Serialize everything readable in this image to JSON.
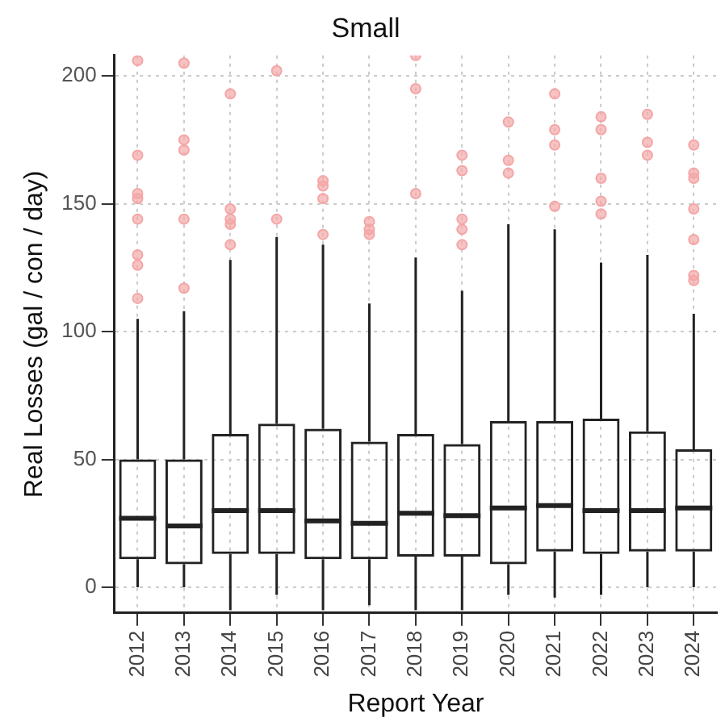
{
  "chart_data": {
    "type": "box",
    "title": "Small",
    "xlabel": "Report Year",
    "ylabel": "Real Losses (gal / con / day)",
    "categories": [
      "2012",
      "2013",
      "2014",
      "2015",
      "2016",
      "2017",
      "2018",
      "2019",
      "2020",
      "2021",
      "2022",
      "2023",
      "2024"
    ],
    "ylim": [
      -10,
      208
    ],
    "yticks": [
      0,
      50,
      100,
      150,
      200
    ],
    "grid": true,
    "line_style": "dotted",
    "series": [
      {
        "color": "#222222",
        "boxes": [
          {
            "low": 0,
            "q1": 11,
            "median": 27,
            "q3": 50,
            "high": 105
          },
          {
            "low": 0,
            "q1": 9,
            "median": 24,
            "q3": 50,
            "high": 108
          },
          {
            "low": -9,
            "q1": 13,
            "median": 30,
            "q3": 60,
            "high": 128
          },
          {
            "low": -3,
            "q1": 13,
            "median": 30,
            "q3": 64,
            "high": 137
          },
          {
            "low": -9,
            "q1": 11,
            "median": 26,
            "q3": 62,
            "high": 134
          },
          {
            "low": -7,
            "q1": 11,
            "median": 25,
            "q3": 57,
            "high": 111
          },
          {
            "low": -9,
            "q1": 12,
            "median": 29,
            "q3": 60,
            "high": 129
          },
          {
            "low": -9,
            "q1": 12,
            "median": 28,
            "q3": 56,
            "high": 116
          },
          {
            "low": -3,
            "q1": 9,
            "median": 31,
            "q3": 65,
            "high": 142
          },
          {
            "low": -4,
            "q1": 14,
            "median": 32,
            "q3": 65,
            "high": 140
          },
          {
            "low": -3,
            "q1": 13,
            "median": 30,
            "q3": 66,
            "high": 127
          },
          {
            "low": 0,
            "q1": 14,
            "median": 30,
            "q3": 61,
            "high": 130
          },
          {
            "low": 0,
            "q1": 14,
            "median": 31,
            "q3": 54,
            "high": 107
          }
        ]
      },
      {
        "type": "scatter",
        "color": "#f4a6a6",
        "values": [
          206,
          205,
          193,
          202,
          159,
          143,
          208,
          169,
          182,
          193,
          184,
          185,
          173
        ]
      },
      {
        "type": "scatter",
        "color": "#f4a6a6",
        "values": [
          169,
          175,
          148,
          144,
          157,
          140,
          195,
          163,
          167,
          179,
          179,
          174,
          162
        ]
      },
      {
        "type": "scatter",
        "color": "#f4a6a6",
        "values": [
          154,
          171,
          144,
          null,
          152,
          138,
          154,
          144,
          162,
          173,
          160,
          169,
          160
        ]
      },
      {
        "type": "scatter",
        "color": "#f4a6a6",
        "values": [
          152,
          144,
          142,
          null,
          138,
          null,
          null,
          140,
          null,
          149,
          151,
          null,
          148
        ]
      },
      {
        "type": "scatter",
        "color": "#f4a6a6",
        "values": [
          144,
          117,
          134,
          null,
          null,
          null,
          null,
          134,
          null,
          null,
          146,
          null,
          136
        ]
      },
      {
        "type": "scatter",
        "color": "#f4a6a6",
        "values": [
          130,
          null,
          null,
          null,
          null,
          null,
          null,
          null,
          null,
          null,
          null,
          null,
          122
        ]
      },
      {
        "type": "scatter",
        "color": "#f4a6a6",
        "values": [
          126,
          null,
          null,
          null,
          null,
          null,
          null,
          null,
          null,
          null,
          null,
          null,
          120
        ]
      },
      {
        "type": "scatter",
        "color": "#f4a6a6",
        "values": [
          113,
          null,
          null,
          null,
          null,
          null,
          null,
          null,
          null,
          null,
          null,
          null,
          null
        ]
      }
    ]
  }
}
